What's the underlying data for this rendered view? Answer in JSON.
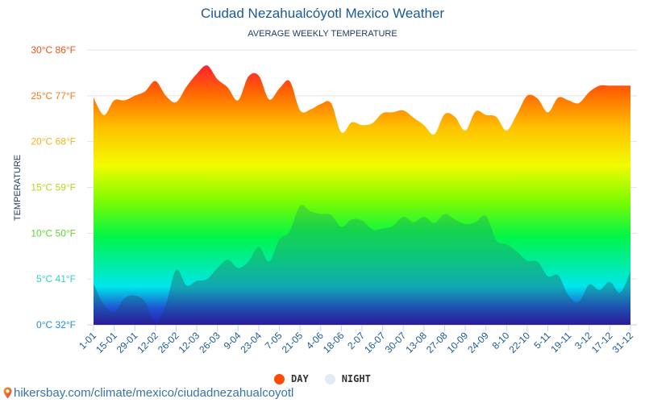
{
  "header": {
    "title": "Ciudad Nezahualcóyotl Mexico Weather",
    "subtitle": "AVERAGE WEEKLY TEMPERATURE"
  },
  "legend": {
    "day_label": "DAY",
    "night_label": "NIGHT",
    "day_color": "#ff4b00",
    "night_color": "#e4eaf2"
  },
  "footer": {
    "url": "hikersbay.com/climate/mexico/ciudadnezahualcoyotl",
    "icon": "map-pin-icon"
  },
  "chart_data": {
    "type": "area",
    "title": "Ciudad Nezahualcóyotl Mexico Weather",
    "subtitle": "AVERAGE WEEKLY TEMPERATURE",
    "xlabel": "",
    "ylabel": "TEMPERATURE",
    "ylim": [
      0,
      30
    ],
    "grid": true,
    "legend_position": "bottom-center",
    "y_ticks": [
      {
        "value": 0,
        "label": "0°C 32°F",
        "color": "#1f8fd6"
      },
      {
        "value": 5,
        "label": "5°C 41°F",
        "color": "#2fd0c8"
      },
      {
        "value": 10,
        "label": "10°C 50°F",
        "color": "#5cd62a"
      },
      {
        "value": 15,
        "label": "15°C 59°F",
        "color": "#b3d91a"
      },
      {
        "value": 20,
        "label": "20°C 68°F",
        "color": "#f0b61a"
      },
      {
        "value": 25,
        "label": "25°C 77°F",
        "color": "#f07a1a"
      },
      {
        "value": 30,
        "label": "30°C 86°F",
        "color": "#f0521a"
      }
    ],
    "x_tick_labels": [
      "1-01",
      "15-01",
      "29-01",
      "12-02",
      "26-02",
      "12-03",
      "26-03",
      "9-04",
      "23-04",
      "7-05",
      "21-05",
      "4-06",
      "18-06",
      "2-07",
      "16-07",
      "30-07",
      "13-08",
      "27-08",
      "10-09",
      "24-09",
      "8-10",
      "22-10",
      "5-11",
      "19-11",
      "3-12",
      "17-12",
      "31-12"
    ],
    "x": [
      "1-01",
      "8-01",
      "15-01",
      "22-01",
      "29-01",
      "5-02",
      "12-02",
      "19-02",
      "26-02",
      "5-03",
      "12-03",
      "19-03",
      "26-03",
      "2-04",
      "9-04",
      "16-04",
      "23-04",
      "30-04",
      "7-05",
      "14-05",
      "21-05",
      "28-05",
      "4-06",
      "11-06",
      "18-06",
      "25-06",
      "2-07",
      "9-07",
      "16-07",
      "23-07",
      "30-07",
      "6-08",
      "13-08",
      "20-08",
      "27-08",
      "3-09",
      "10-09",
      "17-09",
      "24-09",
      "1-10",
      "8-10",
      "15-10",
      "22-10",
      "29-10",
      "5-11",
      "12-11",
      "19-11",
      "26-11",
      "3-12",
      "10-12",
      "17-12",
      "24-12",
      "31-12"
    ],
    "series": [
      {
        "name": "DAY",
        "values": [
          24.8,
          22.9,
          24.5,
          24.5,
          25.0,
          25.5,
          26.6,
          25.0,
          24.3,
          26.0,
          27.4,
          28.3,
          26.8,
          25.9,
          24.5,
          27.1,
          27.2,
          24.6,
          25.8,
          26.6,
          23.4,
          23.5,
          24.1,
          24.2,
          21.0,
          22.1,
          21.8,
          22.0,
          23.1,
          23.2,
          23.4,
          22.6,
          21.8,
          20.8,
          23.0,
          22.7,
          21.2,
          23.3,
          22.9,
          22.7,
          21.2,
          23.0,
          25.0,
          24.7,
          23.2,
          24.8,
          24.5,
          24.2,
          25.4,
          26.1,
          26.1,
          26.1,
          26.1
        ]
      },
      {
        "name": "NIGHT",
        "values": [
          4.5,
          2.2,
          1.4,
          2.9,
          3.2,
          2.5,
          0.2,
          2.2,
          6.0,
          4.3,
          4.8,
          5.0,
          6.2,
          7.1,
          6.2,
          6.9,
          8.5,
          6.9,
          9.3,
          10.2,
          13.0,
          12.4,
          12.1,
          12.0,
          10.7,
          11.5,
          11.4,
          10.4,
          10.5,
          10.8,
          11.8,
          11.2,
          11.8,
          11.1,
          12.1,
          11.5,
          11.0,
          11.2,
          11.9,
          9.2,
          8.8,
          8.0,
          7.0,
          6.9,
          5.3,
          5.4,
          3.2,
          2.5,
          4.4,
          3.8,
          4.7,
          3.5,
          5.8
        ]
      }
    ]
  }
}
